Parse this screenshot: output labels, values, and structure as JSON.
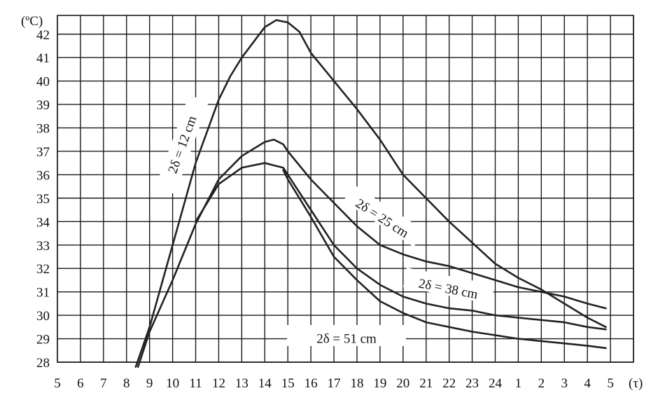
{
  "chart_data": {
    "type": "line",
    "title": "",
    "y_unit": "(ºC)",
    "x_unit": "(τ)",
    "x_tick_labels": [
      "5",
      "6",
      "7",
      "8",
      "9",
      "10",
      "11",
      "12",
      "13",
      "14",
      "15",
      "16",
      "17",
      "18",
      "19",
      "20",
      "21",
      "22",
      "23",
      "24",
      "1",
      "2",
      "3",
      "4",
      "5"
    ],
    "y_tick_labels": [
      "28",
      "29",
      "30",
      "31",
      "32",
      "33",
      "34",
      "35",
      "36",
      "37",
      "38",
      "39",
      "40",
      "41",
      "42"
    ],
    "ylim": [
      28,
      42.8
    ],
    "grid": true,
    "series": [
      {
        "name": "2δ = 12 cm",
        "points": [
          [
            8.4,
            27.8
          ],
          [
            9,
            29.5
          ],
          [
            10,
            33
          ],
          [
            11,
            36.5
          ],
          [
            12,
            39.2
          ],
          [
            12.5,
            40.2
          ],
          [
            13,
            41
          ],
          [
            14,
            42.3
          ],
          [
            14.5,
            42.6
          ],
          [
            15,
            42.5
          ],
          [
            15.5,
            42.1
          ],
          [
            16,
            41.2
          ],
          [
            17,
            40
          ],
          [
            18,
            38.8
          ],
          [
            19,
            37.5
          ],
          [
            20,
            36
          ],
          [
            21,
            35
          ],
          [
            22,
            34
          ],
          [
            23,
            33.1
          ],
          [
            24,
            32.2
          ],
          [
            25,
            31.6
          ],
          [
            26,
            31.1
          ],
          [
            27,
            30.5
          ],
          [
            28,
            29.9
          ],
          [
            28.8,
            29.5
          ]
        ]
      },
      {
        "name": "2δ = 25 cm",
        "points": [
          [
            8.5,
            27.8
          ],
          [
            9,
            29.3
          ],
          [
            10,
            31.5
          ],
          [
            11,
            33.9
          ],
          [
            12,
            35.8
          ],
          [
            13,
            36.8
          ],
          [
            14,
            37.4
          ],
          [
            14.4,
            37.5
          ],
          [
            14.8,
            37.3
          ],
          [
            15,
            37.0
          ],
          [
            16,
            35.8
          ],
          [
            17,
            34.8
          ],
          [
            18,
            33.8
          ],
          [
            19,
            33
          ],
          [
            20,
            32.6
          ],
          [
            21,
            32.3
          ],
          [
            22,
            32.1
          ],
          [
            23,
            31.8
          ],
          [
            24,
            31.5
          ],
          [
            25,
            31.2
          ],
          [
            26,
            31
          ],
          [
            27,
            30.8
          ],
          [
            28,
            30.5
          ],
          [
            28.8,
            30.3
          ]
        ]
      },
      {
        "name": "2δ = 38 cm",
        "points": [
          [
            11,
            34
          ],
          [
            12,
            35.6
          ],
          [
            13,
            36.3
          ],
          [
            14,
            36.5
          ],
          [
            14.4,
            36.4
          ],
          [
            14.8,
            36.3
          ],
          [
            15,
            36
          ],
          [
            16,
            34.5
          ],
          [
            17,
            33
          ],
          [
            18,
            32
          ],
          [
            19,
            31.3
          ],
          [
            20,
            30.8
          ],
          [
            21,
            30.5
          ],
          [
            22,
            30.3
          ],
          [
            23,
            30.2
          ],
          [
            24,
            30
          ],
          [
            25,
            29.9
          ],
          [
            26,
            29.8
          ],
          [
            27,
            29.7
          ],
          [
            28,
            29.5
          ],
          [
            28.8,
            29.4
          ]
        ]
      },
      {
        "name": "2δ = 51 cm",
        "points": [
          [
            14.8,
            36.2
          ],
          [
            15,
            35.8
          ],
          [
            16,
            34.2
          ],
          [
            17,
            32.5
          ],
          [
            18,
            31.5
          ],
          [
            19,
            30.6
          ],
          [
            20,
            30.1
          ],
          [
            21,
            29.7
          ],
          [
            22,
            29.5
          ],
          [
            23,
            29.3
          ],
          [
            24,
            29.15
          ],
          [
            25,
            29
          ],
          [
            26,
            28.9
          ],
          [
            27,
            28.8
          ],
          [
            28,
            28.7
          ],
          [
            28.8,
            28.6
          ]
        ]
      }
    ]
  }
}
